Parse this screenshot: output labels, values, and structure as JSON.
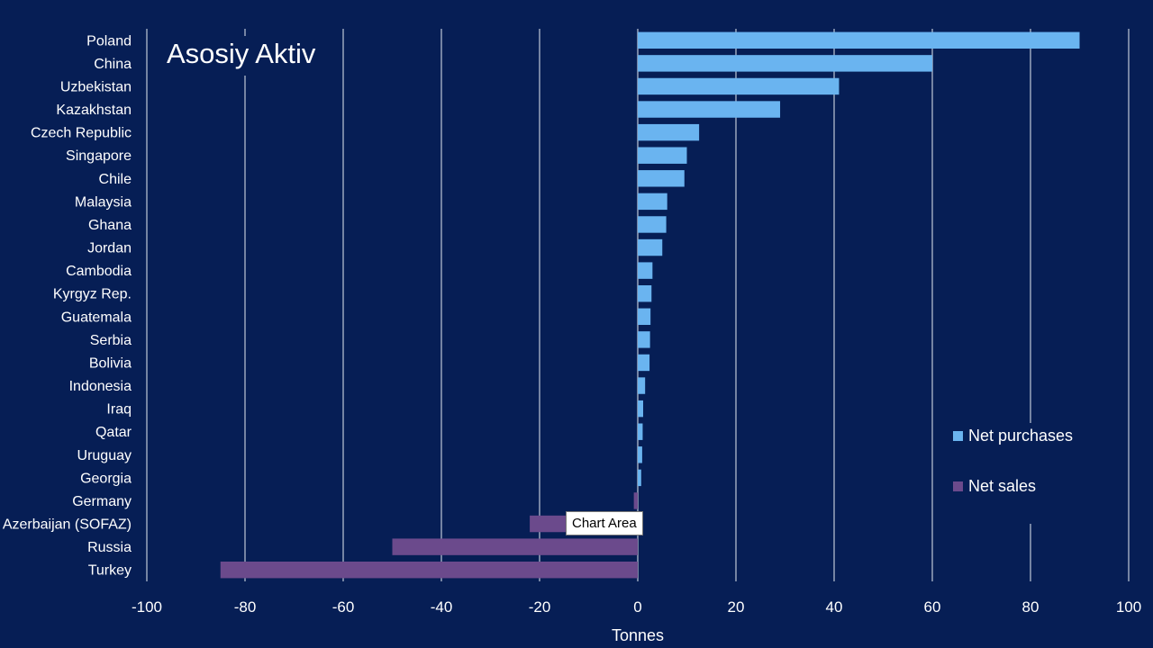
{
  "title": "Asosiy Aktiv",
  "tooltip": "Chart Area",
  "chart_data": {
    "type": "bar",
    "orientation": "horizontal",
    "categories": [
      "Poland",
      "China",
      "Uzbekistan",
      "Kazakhstan",
      "Czech Republic",
      "Singapore",
      "Chile",
      "Malaysia",
      "Ghana",
      "Jordan",
      "Cambodia",
      "Kyrgyz Rep.",
      "Guatemala",
      "Serbia",
      "Bolivia",
      "Indonesia",
      "Iraq",
      "Qatar",
      "Uruguay",
      "Georgia",
      "Germany",
      "Azerbaijan (SOFAZ)",
      "Russia",
      "Turkey"
    ],
    "values": [
      90,
      60,
      41,
      29,
      12.5,
      10,
      9.5,
      6,
      5.8,
      5,
      3,
      2.8,
      2.6,
      2.5,
      2.4,
      1.5,
      1.1,
      1.0,
      0.9,
      0.7,
      -0.8,
      -22,
      -50,
      -85
    ],
    "series": [
      {
        "name": "Net purchases",
        "color": "#6ab4f0"
      },
      {
        "name": "Net sales",
        "color": "#6b4a8c"
      }
    ],
    "xlabel": "Tonnes",
    "ylabel": "",
    "xlim": [
      -100,
      100
    ],
    "xticks": [
      -100,
      -80,
      -60,
      -40,
      -20,
      0,
      20,
      40,
      60,
      80,
      100
    ],
    "grid": true,
    "legend_position": "right"
  },
  "colors": {
    "background": "#061e55",
    "gridline": "#9aa6bd",
    "text": "#ffffff"
  }
}
